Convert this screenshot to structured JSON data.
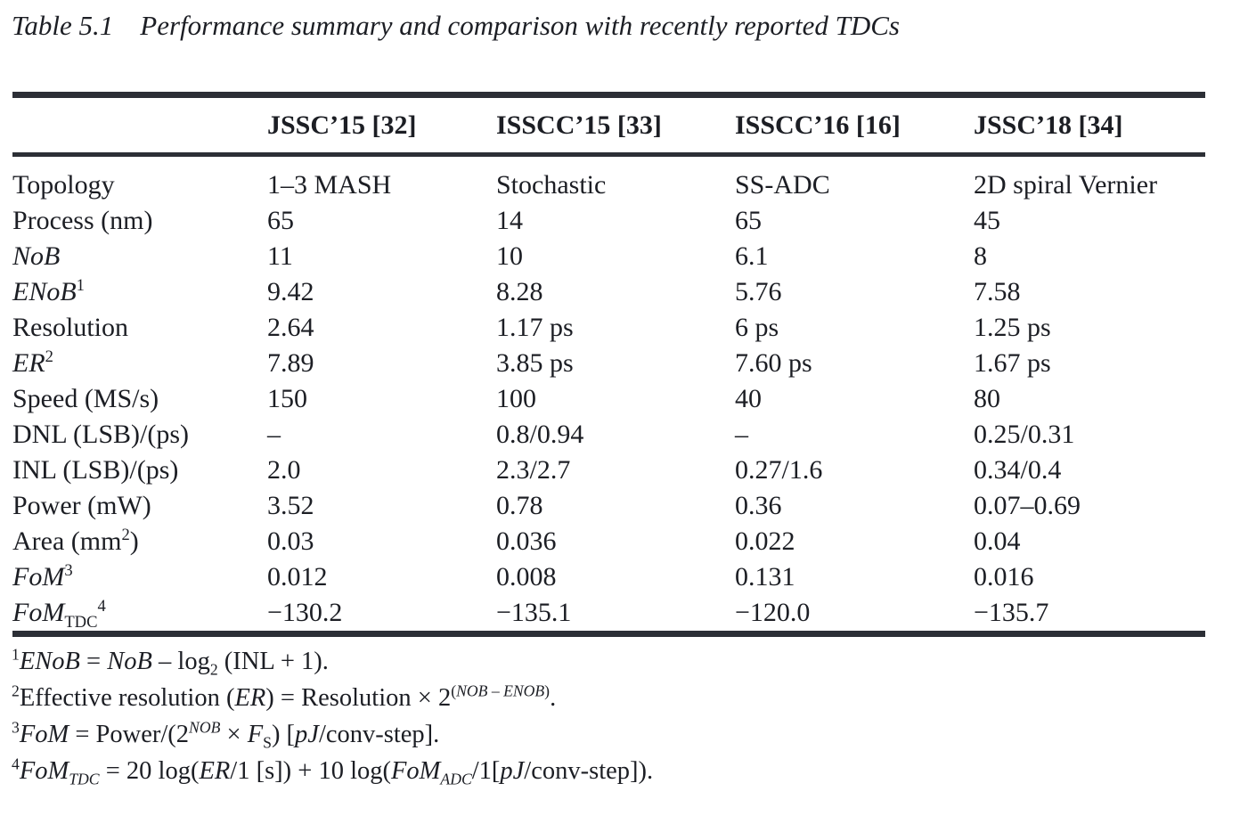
{
  "title": {
    "label": "Table 5.1",
    "text": "Performance summary and comparison with recently reported TDCs"
  },
  "colors": {
    "text": "#1c1e24",
    "rule": "#2c2f36"
  },
  "table": {
    "columns": [
      "JSSC’15 [32]",
      "ISSCC’15 [33]",
      "ISSCC’16 [16]",
      "JSSC’18 [34]"
    ],
    "rows": [
      {
        "label_html": "Topology",
        "values": [
          "1–3 MASH",
          "Stochastic",
          "SS-ADC",
          "2D spiral Vernier"
        ]
      },
      {
        "label_html": "Process (nm)",
        "values": [
          "65",
          "14",
          "65",
          "45"
        ]
      },
      {
        "label_html": "<i>NoB</i>",
        "values": [
          "11",
          "10",
          "6.1",
          "8"
        ]
      },
      {
        "label_html": "<i>ENoB</i><sup>1</sup>",
        "values": [
          "9.42",
          "8.28",
          "5.76",
          "7.58"
        ]
      },
      {
        "label_html": "Resolution",
        "values": [
          "2.64",
          "1.17 ps",
          "6 ps",
          "1.25 ps"
        ]
      },
      {
        "label_html": "<i>ER</i><sup>2</sup>",
        "values": [
          "7.89",
          "3.85 ps",
          "7.60 ps",
          "1.67 ps"
        ]
      },
      {
        "label_html": "Speed (MS/s)",
        "values": [
          "150",
          "100",
          "40",
          "80"
        ]
      },
      {
        "label_html": "DNL (LSB)/(ps)",
        "values": [
          "–",
          "0.8/0.94",
          "–",
          "0.25/0.31"
        ]
      },
      {
        "label_html": "INL (LSB)/(ps)",
        "values": [
          "2.0",
          "2.3/2.7",
          "0.27/1.6",
          "0.34/0.4"
        ]
      },
      {
        "label_html": "Power (mW)",
        "values": [
          "3.52",
          "0.78",
          "0.36",
          "0.07–0.69"
        ]
      },
      {
        "label_html": "Area (mm<sup>2</sup>)",
        "values": [
          "0.03",
          "0.036",
          "0.022",
          "0.04"
        ]
      },
      {
        "label_html": "<i>FoM</i><sup>3</sup>",
        "values": [
          "0.012",
          "0.008",
          "0.131",
          "0.016"
        ]
      },
      {
        "label_html": "<i>FoM</i><sub>TDC</sub><sup>4</sup>",
        "values": [
          "−130.2",
          "−135.1",
          "−120.0",
          "−135.7"
        ]
      }
    ]
  },
  "footnotes": [
    "<sup>1</sup><i>ENoB</i> = <i>NoB</i> – log<sub>2</sub> (INL + 1).",
    "<sup>2</sup>Effective resolution (<i>ER</i>) = Resolution × 2<sup>(<i>NOB</i> – <i>ENOB</i>)</sup>.",
    "<sup>3</sup><i>FoM</i> = Power/(2<sup><i>NOB</i></sup> × <i>F</i><sub>S</sub>) [<i>pJ</i>/conv-step].",
    "<sup>4</sup><i>FoM</i><sub><i>TDC</i></sub> = 20 log(<i>ER</i>/1 [s]) + 10 log(<i>FoM</i><sub><i>ADC</i></sub>/1[<i>pJ</i>/conv-step])."
  ]
}
